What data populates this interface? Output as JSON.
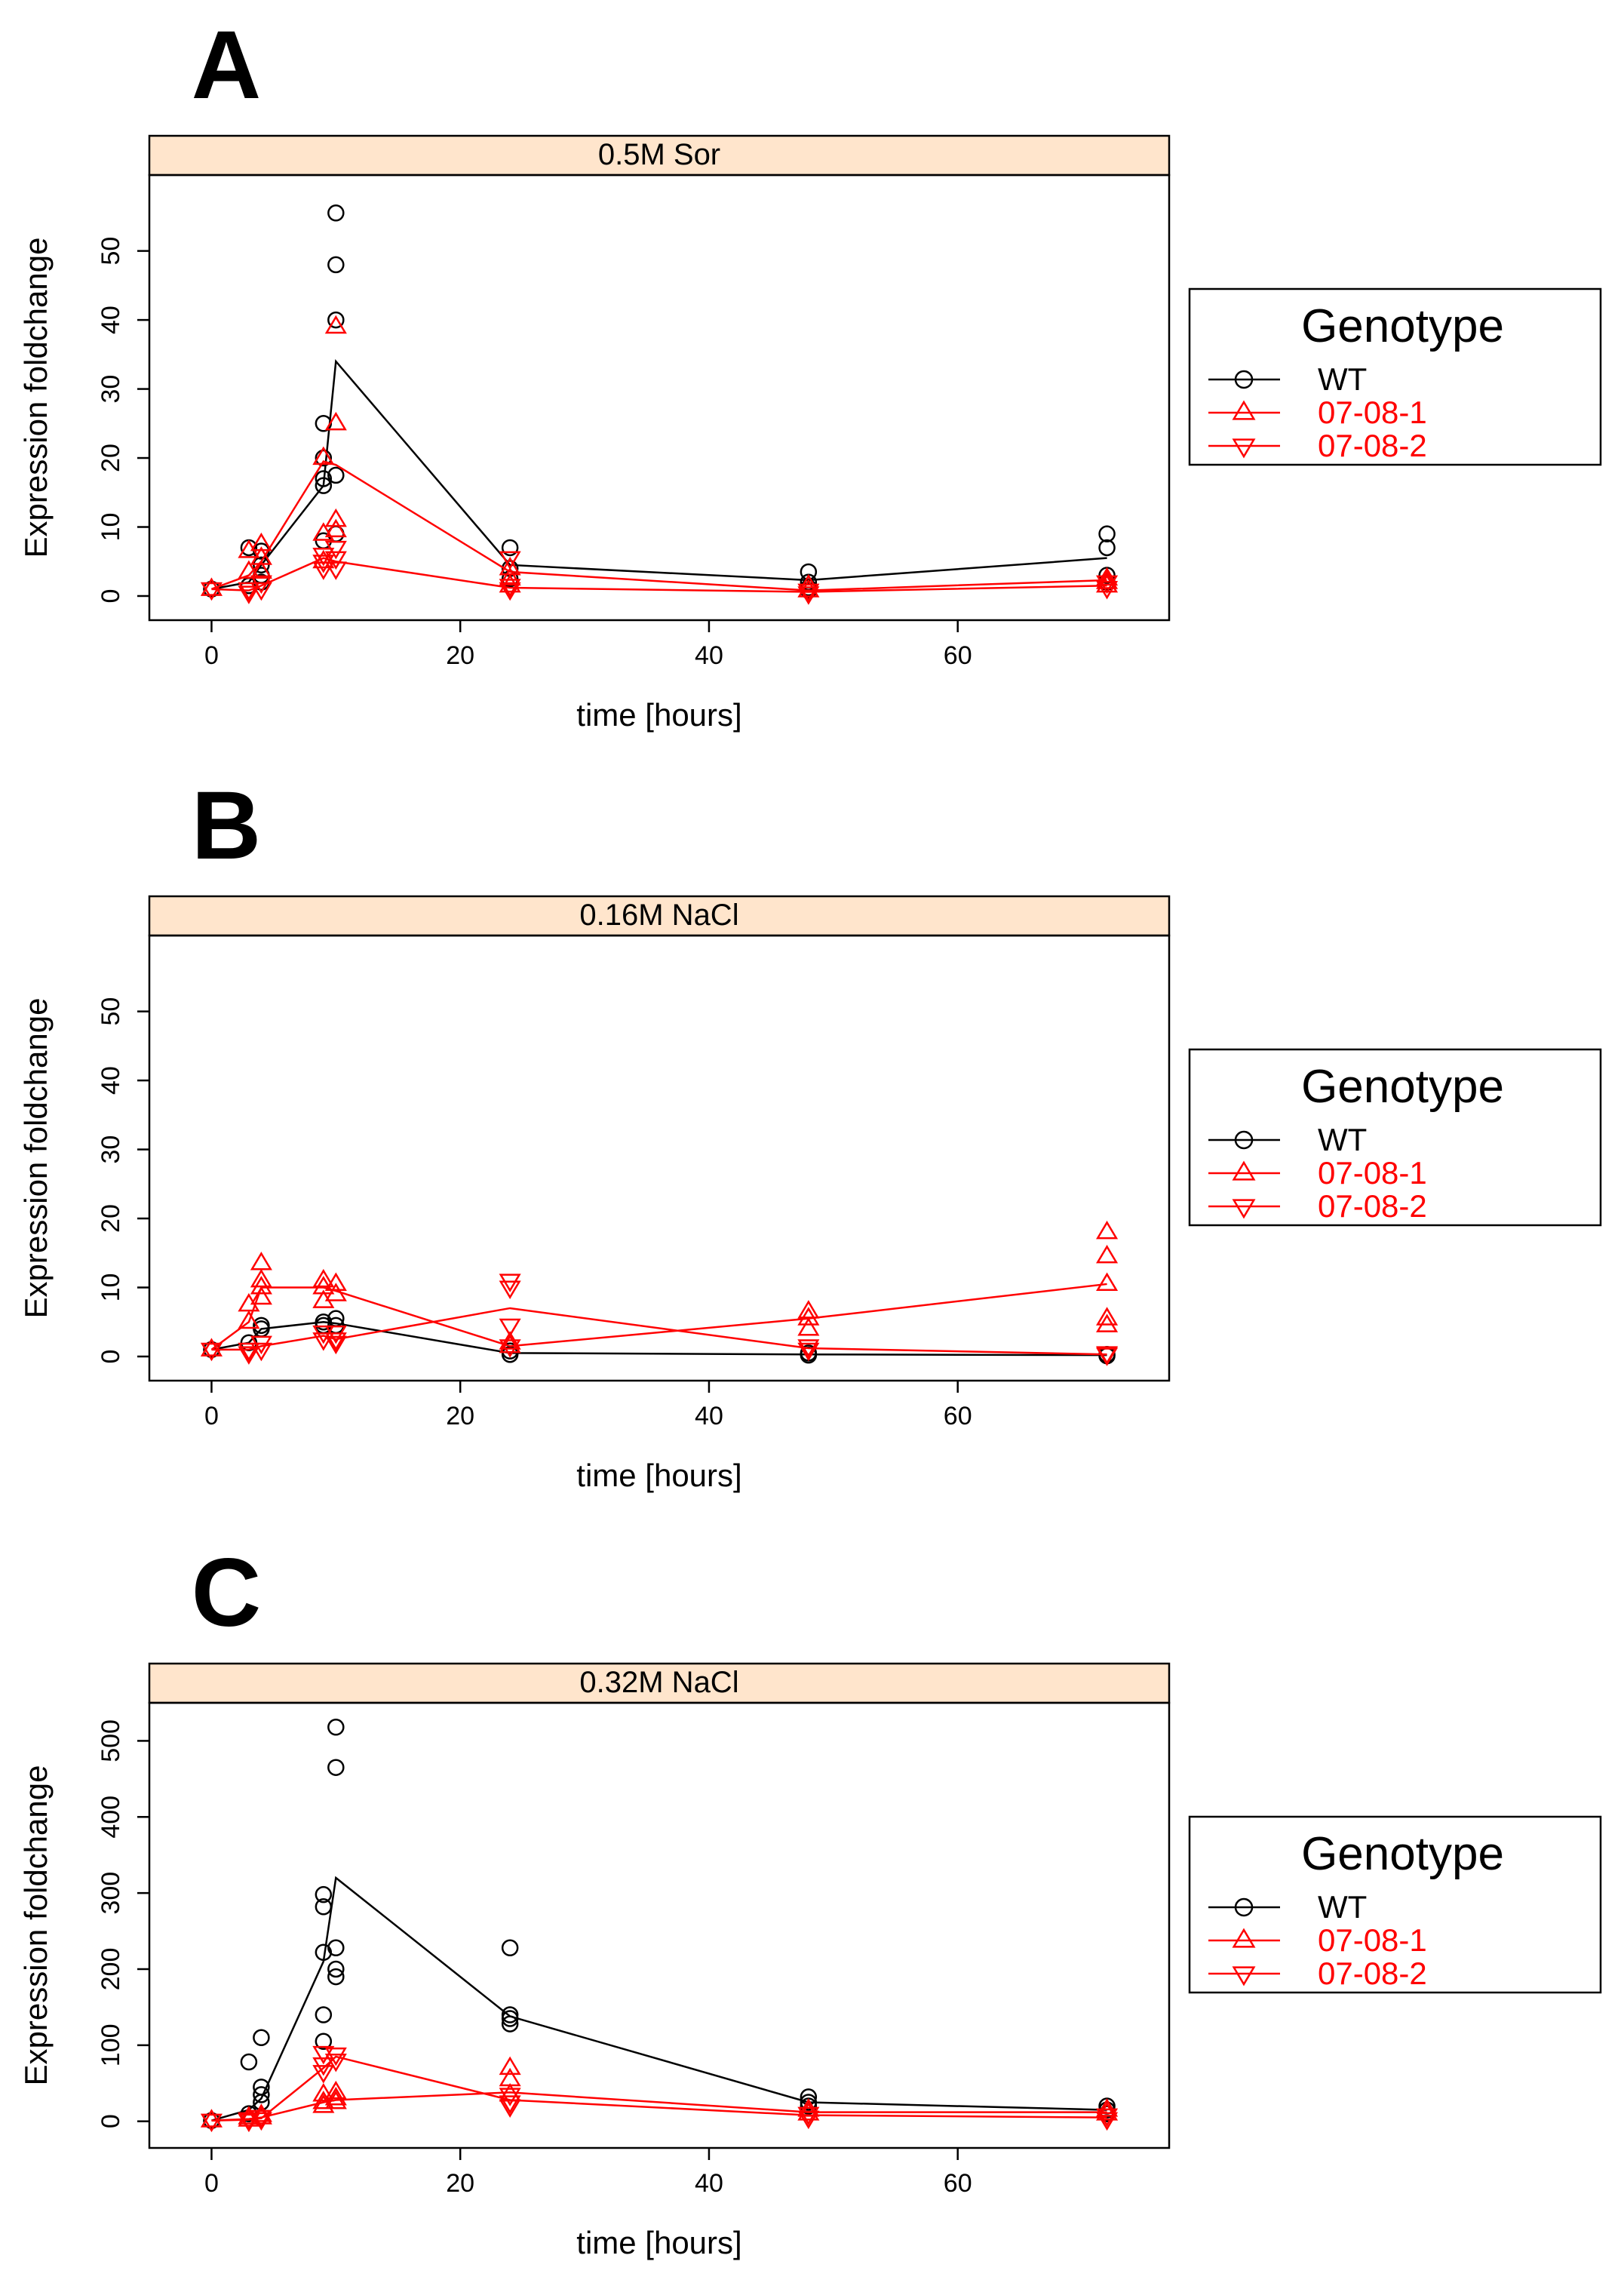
{
  "chart_data": [
    {
      "type": "scatter",
      "panel_letter": "A",
      "strip_title": "0.5M Sor",
      "xlabel": "time [hours]",
      "ylabel": "Expression foldchange",
      "xlim": [
        -5,
        77
      ],
      "ylim": [
        -3.5,
        61
      ],
      "xticks": [
        0,
        20,
        40,
        60
      ],
      "yticks": [
        0,
        10,
        20,
        30,
        40,
        50
      ],
      "legend": {
        "title": "Genotype",
        "placement": "right",
        "entries": [
          {
            "label": "WT",
            "color": "#000000",
            "marker": "circle"
          },
          {
            "label": "07-08-1",
            "color": "#ff0000",
            "marker": "triangle-up"
          },
          {
            "label": "07-08-2",
            "color": "#ff0000",
            "marker": "triangle-down"
          }
        ]
      },
      "series": [
        {
          "name": "WT",
          "color": "#000000",
          "marker": "circle",
          "mean_line": {
            "x": [
              0,
              3,
              4,
              9,
              10,
              24,
              48,
              72
            ],
            "y": [
              1,
              2,
              4.5,
              16,
              34,
              4.5,
              2.3,
              5.5
            ]
          },
          "points": [
            [
              0,
              1
            ],
            [
              3,
              7
            ],
            [
              3,
              1.5
            ],
            [
              4,
              6.5
            ],
            [
              4,
              4.5
            ],
            [
              4,
              3
            ],
            [
              4,
              2
            ],
            [
              9,
              25
            ],
            [
              9,
              20
            ],
            [
              9,
              16
            ],
            [
              9,
              17
            ],
            [
              9,
              8
            ],
            [
              10,
              55.5
            ],
            [
              10,
              48
            ],
            [
              10,
              40
            ],
            [
              10,
              17.5
            ],
            [
              10,
              9
            ],
            [
              24,
              7
            ],
            [
              24,
              4
            ],
            [
              24,
              2.5
            ],
            [
              48,
              3.5
            ],
            [
              48,
              2
            ],
            [
              48,
              1.2
            ],
            [
              48,
              0.8
            ],
            [
              72,
              9
            ],
            [
              72,
              7
            ],
            [
              72,
              3
            ],
            [
              72,
              2
            ]
          ]
        },
        {
          "name": "07-08-1",
          "color": "#ff0000",
          "marker": "triangle-up",
          "mean_line": {
            "x": [
              0,
              3,
              4,
              9,
              10,
              24,
              48,
              72
            ],
            "y": [
              1,
              3,
              5,
              19.5,
              19,
              3.5,
              0.8,
              2.3
            ]
          },
          "points": [
            [
              0,
              1
            ],
            [
              3,
              6.5
            ],
            [
              3,
              3.5
            ],
            [
              4,
              7.5
            ],
            [
              4,
              5.5
            ],
            [
              4,
              3.5
            ],
            [
              9,
              20
            ],
            [
              9,
              9
            ],
            [
              9,
              5
            ],
            [
              10,
              39
            ],
            [
              10,
              25
            ],
            [
              10,
              11
            ],
            [
              10,
              9.5
            ],
            [
              24,
              4
            ],
            [
              24,
              2.5
            ],
            [
              24,
              1.5
            ],
            [
              48,
              1.5
            ],
            [
              48,
              0.8
            ],
            [
              72,
              2.5
            ],
            [
              72,
              2
            ],
            [
              72,
              1.5
            ]
          ]
        },
        {
          "name": "07-08-2",
          "color": "#ff0000",
          "marker": "triangle-down",
          "mean_line": {
            "x": [
              0,
              3,
              4,
              9,
              10,
              24,
              48,
              72
            ],
            "y": [
              1,
              0.8,
              1.5,
              5.5,
              5,
              1.2,
              0.6,
              1.5
            ]
          },
          "points": [
            [
              0,
              1
            ],
            [
              3,
              0.5
            ],
            [
              3,
              1
            ],
            [
              4,
              2
            ],
            [
              4,
              1
            ],
            [
              9,
              6
            ],
            [
              9,
              5
            ],
            [
              9,
              4
            ],
            [
              10,
              7
            ],
            [
              10,
              5.5
            ],
            [
              10,
              4
            ],
            [
              24,
              5.5
            ],
            [
              24,
              1.5
            ],
            [
              24,
              1
            ],
            [
              48,
              0.8
            ],
            [
              48,
              0.4
            ],
            [
              72,
              2
            ],
            [
              72,
              1.2
            ]
          ]
        }
      ]
    },
    {
      "type": "scatter",
      "panel_letter": "B",
      "strip_title": "0.16M NaCl",
      "xlabel": "time [hours]",
      "ylabel": "Expression foldchange",
      "xlim": [
        -5,
        77
      ],
      "ylim": [
        -3.5,
        61
      ],
      "xticks": [
        0,
        20,
        40,
        60
      ],
      "yticks": [
        0,
        10,
        20,
        30,
        40,
        50
      ],
      "legend": {
        "title": "Genotype",
        "placement": "right",
        "entries": [
          {
            "label": "WT",
            "color": "#000000",
            "marker": "circle"
          },
          {
            "label": "07-08-1",
            "color": "#ff0000",
            "marker": "triangle-up"
          },
          {
            "label": "07-08-2",
            "color": "#ff0000",
            "marker": "triangle-down"
          }
        ]
      },
      "series": [
        {
          "name": "WT",
          "color": "#000000",
          "marker": "circle",
          "mean_line": {
            "x": [
              0,
              3,
              4,
              9,
              10,
              24,
              48,
              72
            ],
            "y": [
              1,
              2,
              4,
              5,
              4.8,
              0.5,
              0.3,
              0.2
            ]
          },
          "points": [
            [
              0,
              1
            ],
            [
              3,
              2
            ],
            [
              4,
              4.5
            ],
            [
              4,
              4
            ],
            [
              9,
              5
            ],
            [
              9,
              4.5
            ],
            [
              10,
              5.5
            ],
            [
              10,
              4.5
            ],
            [
              24,
              0.8
            ],
            [
              24,
              0.3
            ],
            [
              48,
              0.5
            ],
            [
              48,
              0.2
            ],
            [
              72,
              0.3
            ],
            [
              72,
              0.1
            ]
          ]
        },
        {
          "name": "07-08-1",
          "color": "#ff0000",
          "marker": "triangle-up",
          "mean_line": {
            "x": [
              0,
              3,
              4,
              9,
              10,
              24,
              48,
              72
            ],
            "y": [
              1,
              5,
              10,
              10,
              9.5,
              1.5,
              5.5,
              10.5
            ]
          },
          "points": [
            [
              0,
              1
            ],
            [
              3,
              7.5
            ],
            [
              3,
              5
            ],
            [
              4,
              13.5
            ],
            [
              4,
              11
            ],
            [
              4,
              10
            ],
            [
              4,
              8.5
            ],
            [
              9,
              11
            ],
            [
              9,
              10
            ],
            [
              9,
              8
            ],
            [
              10,
              10.5
            ],
            [
              10,
              9
            ],
            [
              24,
              2
            ],
            [
              24,
              1.5
            ],
            [
              48,
              6.5
            ],
            [
              48,
              5.5
            ],
            [
              48,
              4
            ],
            [
              72,
              18
            ],
            [
              72,
              14.5
            ],
            [
              72,
              10.5
            ],
            [
              72,
              5.5
            ],
            [
              72,
              4.5
            ]
          ]
        },
        {
          "name": "07-08-2",
          "color": "#ff0000",
          "marker": "triangle-down",
          "mean_line": {
            "x": [
              0,
              3,
              4,
              9,
              10,
              24,
              48,
              72
            ],
            "y": [
              1,
              1,
              1.5,
              3,
              2.5,
              7,
              1.2,
              0.3
            ]
          },
          "points": [
            [
              0,
              1
            ],
            [
              3,
              0.5
            ],
            [
              3,
              1
            ],
            [
              4,
              2
            ],
            [
              4,
              1
            ],
            [
              9,
              3.5
            ],
            [
              9,
              2.5
            ],
            [
              10,
              3.5
            ],
            [
              10,
              2.5
            ],
            [
              10,
              2
            ],
            [
              24,
              11
            ],
            [
              24,
              10
            ],
            [
              24,
              4.5
            ],
            [
              24,
              1.5
            ],
            [
              48,
              1.5
            ],
            [
              48,
              1
            ],
            [
              72,
              0.5
            ],
            [
              72,
              0.3
            ]
          ]
        }
      ]
    },
    {
      "type": "scatter",
      "panel_letter": "C",
      "strip_title": "0.32M NaCl",
      "xlabel": "time [hours]",
      "ylabel": "Expression foldchange",
      "xlim": [
        -5,
        77
      ],
      "ylim": [
        -35,
        550
      ],
      "xticks": [
        0,
        20,
        40,
        60
      ],
      "yticks": [
        0,
        100,
        200,
        300,
        400,
        500
      ],
      "legend": {
        "title": "Genotype",
        "placement": "right",
        "entries": [
          {
            "label": "WT",
            "color": "#000000",
            "marker": "circle"
          },
          {
            "label": "07-08-1",
            "color": "#ff0000",
            "marker": "triangle-up"
          },
          {
            "label": "07-08-2",
            "color": "#ff0000",
            "marker": "triangle-down"
          }
        ]
      },
      "series": [
        {
          "name": "WT",
          "color": "#000000",
          "marker": "circle",
          "mean_line": {
            "x": [
              0,
              3,
              4,
              9,
              10,
              24,
              48,
              72
            ],
            "y": [
              1,
              15,
              30,
              210,
              320,
              138,
              25,
              15
            ]
          },
          "points": [
            [
              0,
              1
            ],
            [
              3,
              78
            ],
            [
              3,
              10
            ],
            [
              4,
              110
            ],
            [
              4,
              45
            ],
            [
              4,
              35
            ],
            [
              4,
              25
            ],
            [
              9,
              298
            ],
            [
              9,
              282
            ],
            [
              9,
              222
            ],
            [
              9,
              140
            ],
            [
              9,
              105
            ],
            [
              10,
              518
            ],
            [
              10,
              465
            ],
            [
              10,
              228
            ],
            [
              10,
              200
            ],
            [
              10,
              190
            ],
            [
              24,
              228
            ],
            [
              24,
              140
            ],
            [
              24,
              135
            ],
            [
              24,
              128
            ],
            [
              48,
              32
            ],
            [
              48,
              25
            ],
            [
              48,
              20
            ],
            [
              72,
              20
            ],
            [
              72,
              15
            ],
            [
              72,
              10
            ]
          ]
        },
        {
          "name": "07-08-1",
          "color": "#ff0000",
          "marker": "triangle-up",
          "mean_line": {
            "x": [
              0,
              3,
              4,
              9,
              10,
              24,
              48,
              72
            ],
            "y": [
              1,
              3,
              5,
              25,
              28,
              38,
              12,
              12
            ]
          },
          "points": [
            [
              0,
              1
            ],
            [
              3,
              5
            ],
            [
              3,
              2
            ],
            [
              4,
              8
            ],
            [
              4,
              5
            ],
            [
              9,
              35
            ],
            [
              9,
              25
            ],
            [
              9,
              20
            ],
            [
              10,
              38
            ],
            [
              10,
              30
            ],
            [
              10,
              25
            ],
            [
              24,
              70
            ],
            [
              24,
              55
            ],
            [
              24,
              35
            ],
            [
              48,
              15
            ],
            [
              48,
              10
            ],
            [
              72,
              15
            ],
            [
              72,
              10
            ]
          ]
        },
        {
          "name": "07-08-2",
          "color": "#ff0000",
          "marker": "triangle-down",
          "mean_line": {
            "x": [
              0,
              3,
              4,
              9,
              10,
              24,
              48,
              72
            ],
            "y": [
              1,
              2,
              4,
              70,
              85,
              28,
              8,
              5
            ]
          },
          "points": [
            [
              0,
              1
            ],
            [
              3,
              3
            ],
            [
              3,
              1
            ],
            [
              4,
              6
            ],
            [
              4,
              3
            ],
            [
              9,
              90
            ],
            [
              9,
              75
            ],
            [
              9,
              65
            ],
            [
              10,
              88
            ],
            [
              10,
              80
            ],
            [
              24,
              35
            ],
            [
              24,
              25
            ],
            [
              24,
              20
            ],
            [
              48,
              10
            ],
            [
              48,
              5
            ],
            [
              72,
              8
            ],
            [
              72,
              3
            ]
          ]
        }
      ]
    }
  ]
}
